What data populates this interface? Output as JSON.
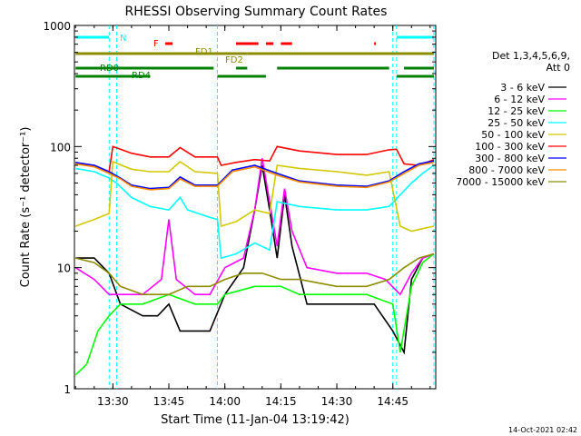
{
  "chart_data": {
    "type": "line",
    "title": "RHESSI Observing Summary Count Rates",
    "xlabel": "Start Time (11-Jan-04 13:19:42)",
    "ylabel": "Count Rate (s⁻¹ detector⁻¹)",
    "yscale": "log",
    "ylim": [
      1,
      1000
    ],
    "xlim": [
      "13:19:42",
      "14:56:30"
    ],
    "x_ticks": [
      "13:30",
      "13:45",
      "14:00",
      "14:15",
      "14:30",
      "14:45"
    ],
    "y_ticks": [
      "1",
      "10",
      "100",
      "1000"
    ],
    "timestamp": "14-Oct-2021 02:42",
    "legend": {
      "header": [
        "Det 1,3,4,5,6,9,",
        "Att 0"
      ],
      "placement": "right"
    },
    "series": [
      {
        "name": "3 - 6 keV",
        "color": "#000000",
        "points": [
          [
            "13:20",
            12
          ],
          [
            "13:25",
            12
          ],
          [
            "13:29",
            9
          ],
          [
            "13:32",
            5
          ],
          [
            "13:38",
            4
          ],
          [
            "13:42",
            4
          ],
          [
            "13:45",
            5
          ],
          [
            "13:48",
            3
          ],
          [
            "13:52",
            3
          ],
          [
            "13:56",
            3
          ],
          [
            "14:00",
            6
          ],
          [
            "14:05",
            10
          ],
          [
            "14:08",
            30
          ],
          [
            "14:10",
            70
          ],
          [
            "14:12",
            30
          ],
          [
            "14:14",
            12
          ],
          [
            "14:16",
            40
          ],
          [
            "14:18",
            15
          ],
          [
            "14:22",
            5
          ],
          [
            "14:28",
            5
          ],
          [
            "14:35",
            5
          ],
          [
            "14:40",
            5
          ],
          [
            "14:45",
            3
          ],
          [
            "14:48",
            2
          ],
          [
            "14:50",
            8
          ],
          [
            "14:53",
            12
          ],
          [
            "14:56",
            13
          ]
        ]
      },
      {
        "name": "6 - 12 keV",
        "color": "#ff00ff",
        "points": [
          [
            "13:20",
            10
          ],
          [
            "13:25",
            8
          ],
          [
            "13:29",
            6
          ],
          [
            "13:32",
            6
          ],
          [
            "13:38",
            6
          ],
          [
            "13:43",
            8
          ],
          [
            "13:45",
            25
          ],
          [
            "13:47",
            8
          ],
          [
            "13:52",
            6
          ],
          [
            "13:56",
            6
          ],
          [
            "14:00",
            10
          ],
          [
            "14:05",
            12
          ],
          [
            "14:08",
            30
          ],
          [
            "14:10",
            80
          ],
          [
            "14:12",
            35
          ],
          [
            "14:14",
            15
          ],
          [
            "14:16",
            45
          ],
          [
            "14:18",
            20
          ],
          [
            "14:22",
            10
          ],
          [
            "14:30",
            9
          ],
          [
            "14:38",
            9
          ],
          [
            "14:43",
            8
          ],
          [
            "14:47",
            6
          ],
          [
            "14:50",
            9
          ],
          [
            "14:53",
            12
          ],
          [
            "14:56",
            13
          ]
        ]
      },
      {
        "name": "12 - 25 keV",
        "color": "#00ff00",
        "points": [
          [
            "13:20",
            1.3
          ],
          [
            "13:23",
            1.6
          ],
          [
            "13:26",
            3
          ],
          [
            "13:29",
            4
          ],
          [
            "13:32",
            5
          ],
          [
            "13:38",
            5
          ],
          [
            "13:45",
            6
          ],
          [
            "13:52",
            5
          ],
          [
            "13:58",
            5
          ],
          [
            "14:00",
            6
          ],
          [
            "14:08",
            7
          ],
          [
            "14:15",
            7
          ],
          [
            "14:20",
            6
          ],
          [
            "14:30",
            6
          ],
          [
            "14:38",
            6
          ],
          [
            "14:45",
            5
          ],
          [
            "14:47",
            2
          ],
          [
            "14:50",
            7
          ],
          [
            "14:53",
            11
          ],
          [
            "14:56",
            13
          ]
        ]
      },
      {
        "name": "25 - 50 keV",
        "color": "#00ffff",
        "points": [
          [
            "13:20",
            66
          ],
          [
            "13:25",
            62
          ],
          [
            "13:29",
            55
          ],
          [
            "13:31",
            50
          ],
          [
            "13:35",
            38
          ],
          [
            "13:40",
            32
          ],
          [
            "13:45",
            30
          ],
          [
            "13:48",
            38
          ],
          [
            "13:50",
            30
          ],
          [
            "13:56",
            26
          ],
          [
            "13:58",
            25
          ],
          [
            "13:59",
            12
          ],
          [
            "14:03",
            13
          ],
          [
            "14:08",
            16
          ],
          [
            "14:12",
            14
          ],
          [
            "14:14",
            35
          ],
          [
            "14:20",
            32
          ],
          [
            "14:30",
            30
          ],
          [
            "14:38",
            30
          ],
          [
            "14:44",
            32
          ],
          [
            "14:47",
            40
          ],
          [
            "14:50",
            50
          ],
          [
            "14:53",
            60
          ],
          [
            "14:56",
            70
          ]
        ]
      },
      {
        "name": "50 - 100 keV",
        "color": "#d2c800",
        "points": [
          [
            "13:20",
            22
          ],
          [
            "13:25",
            25
          ],
          [
            "13:29",
            28
          ],
          [
            "13:30",
            75
          ],
          [
            "13:35",
            65
          ],
          [
            "13:40",
            62
          ],
          [
            "13:45",
            62
          ],
          [
            "13:48",
            75
          ],
          [
            "13:52",
            62
          ],
          [
            "13:58",
            60
          ],
          [
            "13:59",
            22
          ],
          [
            "14:03",
            24
          ],
          [
            "14:08",
            30
          ],
          [
            "14:12",
            28
          ],
          [
            "14:14",
            70
          ],
          [
            "14:20",
            66
          ],
          [
            "14:30",
            62
          ],
          [
            "14:38",
            58
          ],
          [
            "14:44",
            62
          ],
          [
            "14:47",
            22
          ],
          [
            "14:50",
            20
          ],
          [
            "14:53",
            21
          ],
          [
            "14:56",
            22
          ]
        ]
      },
      {
        "name": "100 - 300 keV",
        "color": "#ff0000",
        "points": [
          [
            "13:20",
            72
          ],
          [
            "13:25",
            70
          ],
          [
            "13:29",
            62
          ],
          [
            "13:30",
            100
          ],
          [
            "13:35",
            88
          ],
          [
            "13:40",
            82
          ],
          [
            "13:45",
            82
          ],
          [
            "13:48",
            98
          ],
          [
            "13:52",
            82
          ],
          [
            "13:58",
            82
          ],
          [
            "13:59",
            70
          ],
          [
            "14:03",
            74
          ],
          [
            "14:08",
            78
          ],
          [
            "14:12",
            76
          ],
          [
            "14:14",
            100
          ],
          [
            "14:20",
            92
          ],
          [
            "14:30",
            86
          ],
          [
            "14:38",
            86
          ],
          [
            "14:44",
            94
          ],
          [
            "14:46",
            95
          ],
          [
            "14:48",
            72
          ],
          [
            "14:52",
            70
          ],
          [
            "14:56",
            78
          ]
        ]
      },
      {
        "name": "300 - 800 keV",
        "color": "#0000ff",
        "points": [
          [
            "13:20",
            74
          ],
          [
            "13:25",
            70
          ],
          [
            "13:29",
            62
          ],
          [
            "13:32",
            55
          ],
          [
            "13:35",
            48
          ],
          [
            "13:40",
            45
          ],
          [
            "13:45",
            46
          ],
          [
            "13:48",
            56
          ],
          [
            "13:52",
            48
          ],
          [
            "13:58",
            48
          ],
          [
            "14:02",
            64
          ],
          [
            "14:08",
            70
          ],
          [
            "14:14",
            60
          ],
          [
            "14:20",
            52
          ],
          [
            "14:30",
            48
          ],
          [
            "14:38",
            47
          ],
          [
            "14:44",
            52
          ],
          [
            "14:48",
            62
          ],
          [
            "14:52",
            72
          ],
          [
            "14:56",
            76
          ]
        ]
      },
      {
        "name": "800 - 7000 keV",
        "color": "#ff8c00",
        "points": [
          [
            "13:20",
            72
          ],
          [
            "13:25",
            68
          ],
          [
            "13:29",
            60
          ],
          [
            "13:32",
            54
          ],
          [
            "13:35",
            47
          ],
          [
            "13:40",
            44
          ],
          [
            "13:45",
            45
          ],
          [
            "13:48",
            54
          ],
          [
            "13:52",
            47
          ],
          [
            "13:58",
            47
          ],
          [
            "14:02",
            62
          ],
          [
            "14:08",
            68
          ],
          [
            "14:14",
            58
          ],
          [
            "14:20",
            51
          ],
          [
            "14:30",
            47
          ],
          [
            "14:38",
            46
          ],
          [
            "14:44",
            51
          ],
          [
            "14:48",
            60
          ],
          [
            "14:52",
            70
          ],
          [
            "14:56",
            74
          ]
        ]
      },
      {
        "name": "7000 - 15000 keV",
        "color": "#8c8c00",
        "points": [
          [
            "13:20",
            12
          ],
          [
            "13:25",
            11
          ],
          [
            "13:29",
            9
          ],
          [
            "13:32",
            7
          ],
          [
            "13:38",
            6
          ],
          [
            "13:42",
            6
          ],
          [
            "13:45",
            6
          ],
          [
            "13:50",
            7
          ],
          [
            "13:56",
            7
          ],
          [
            "14:00",
            8
          ],
          [
            "14:05",
            9
          ],
          [
            "14:10",
            9
          ],
          [
            "14:15",
            8
          ],
          [
            "14:20",
            8
          ],
          [
            "14:30",
            7
          ],
          [
            "14:38",
            7
          ],
          [
            "14:44",
            8
          ],
          [
            "14:48",
            10
          ],
          [
            "14:52",
            12
          ],
          [
            "14:56",
            13
          ]
        ]
      }
    ],
    "annotations": {
      "labels": [
        {
          "text": "N",
          "color": "#00ffff"
        },
        {
          "text": "F",
          "color": "#ff0000"
        },
        {
          "text": "FD1",
          "color": "#8c8c00"
        },
        {
          "text": "FD2",
          "color": "#8c8c00"
        },
        {
          "text": "RD0",
          "color": "#008000"
        },
        {
          "text": "RD4",
          "color": "#008000"
        }
      ],
      "bars": [
        {
          "label": "N",
          "color": "#00ffff",
          "segments": [
            [
              "13:20",
              "13:29"
            ],
            [
              "14:46",
              "14:56"
            ]
          ]
        },
        {
          "label": "F",
          "color": "#ff0000",
          "segments": [
            [
              "13:44",
              "13:46"
            ],
            [
              "14:03",
              "14:09"
            ],
            [
              "14:11",
              "14:13"
            ],
            [
              "14:15",
              "14:18"
            ],
            [
              "14:40",
              "14:40.5"
            ]
          ]
        },
        {
          "label": "FD1",
          "color": "#8c8c00",
          "segments": [
            [
              "13:20",
              "14:06"
            ]
          ]
        },
        {
          "label": "FD2",
          "color": "#8c8c00",
          "segments": [
            [
              "14:06",
              "14:56"
            ]
          ]
        },
        {
          "label": "RD0",
          "color": "#008000",
          "segments": [
            [
              "13:20",
              "13:57"
            ],
            [
              "14:03",
              "14:06"
            ],
            [
              "14:14",
              "14:44"
            ],
            [
              "14:48",
              "14:56"
            ]
          ]
        },
        {
          "label": "RD4",
          "color": "#008000",
          "segments": [
            [
              "13:20",
              "13:40"
            ],
            [
              "13:58",
              "14:11"
            ],
            [
              "14:46",
              "14:56"
            ]
          ]
        }
      ],
      "vlines": {
        "color": "#00ffff",
        "times": [
          "13:29",
          "13:31",
          "13:58",
          "14:45",
          "14:46",
          "14:56"
        ]
      }
    }
  }
}
